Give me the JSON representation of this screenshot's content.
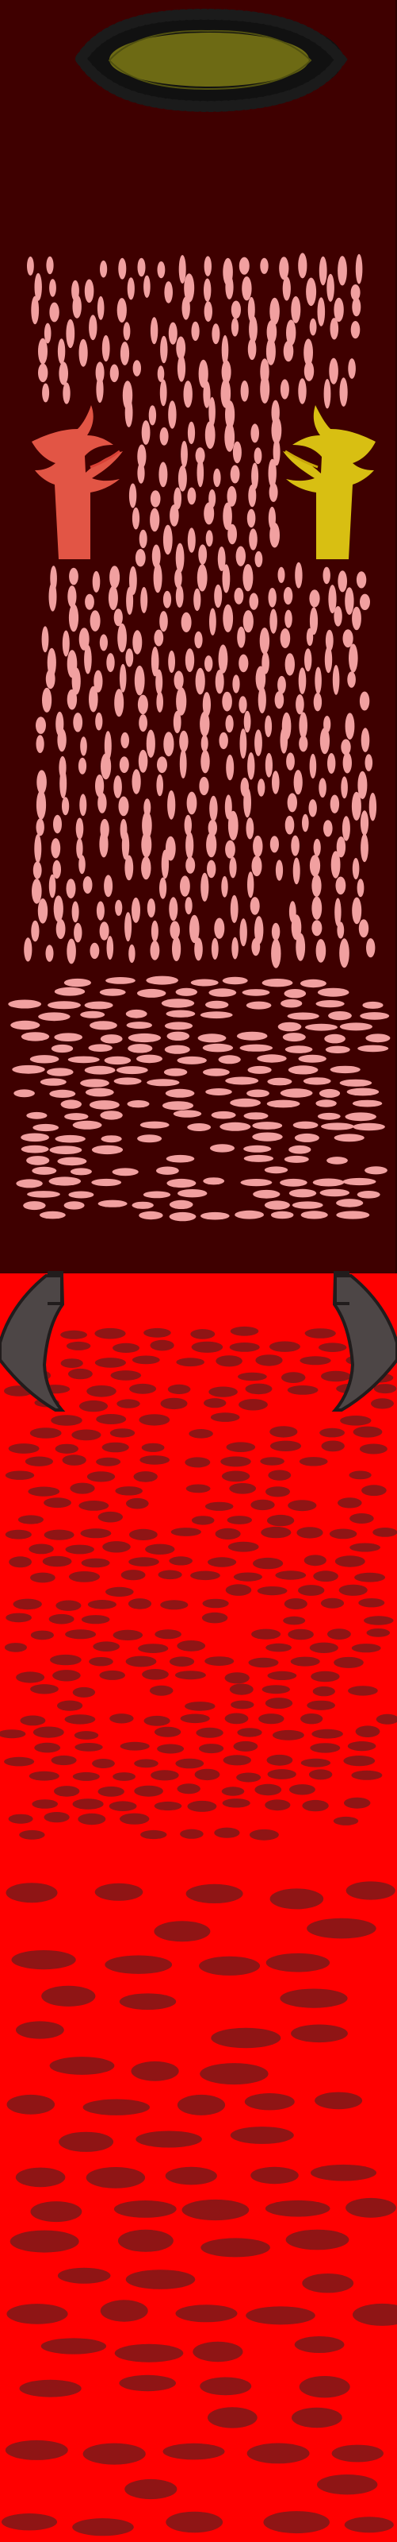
{
  "scene": {
    "colors": {
      "upper_zone": "#3f0000",
      "lower_zone": "#ff0000",
      "upper_drop": "#f1a0a0",
      "lower_drop": "#8f1515",
      "portal_rim": "#111111",
      "portal_core": "#6d6a14",
      "left_creature": "#e25545",
      "right_creature": "#d8bf12",
      "gate_post": "#4d4646"
    },
    "icons": {
      "portal": "dark-portal-icon",
      "left_creature": "left-creature-icon",
      "right_creature": "right-creature-icon",
      "left_gate": "left-gate-post-icon",
      "right_gate": "right-gate-post-icon"
    }
  }
}
